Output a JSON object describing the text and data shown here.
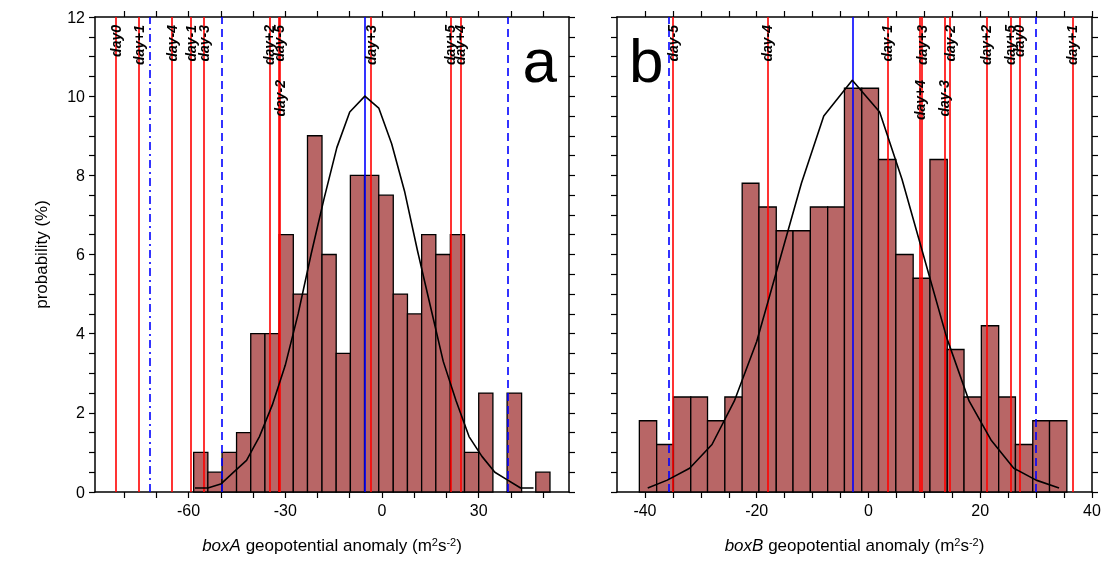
{
  "chart_data": [
    {
      "type": "histogram",
      "xlabel": "boxA geopotential anomaly (m$^{2}$s$^{-2}$)",
      "ylabel": "probability (%)",
      "annotations": [
        "a"
      ],
      "xlim": [
        -89,
        58
      ],
      "xticks": [
        {
          "value": -80,
          "label": null
        },
        {
          "value": -70,
          "label": null
        },
        -60,
        {
          "value": -50,
          "label": null
        },
        {
          "value": -40,
          "label": null
        },
        -30,
        {
          "value": -20,
          "label": null
        },
        {
          "value": -10,
          "label": null
        },
        0,
        {
          "value": 10,
          "label": null
        },
        {
          "value": 20,
          "label": null
        },
        30,
        {
          "value": 40,
          "label": null
        },
        {
          "value": 50,
          "label": null
        }
      ],
      "ylim": [
        0,
        12
      ],
      "yticks": [
        0,
        {
          "value": 0.5,
          "label": null
        },
        {
          "value": 1,
          "label": null
        },
        {
          "value": 1.5,
          "label": null
        },
        2,
        {
          "value": 2.5,
          "label": null
        },
        {
          "value": 3,
          "label": null
        },
        {
          "value": 3.5,
          "label": null
        },
        4,
        {
          "value": 4.5,
          "label": null
        },
        {
          "value": 5,
          "label": null
        },
        {
          "value": 5.5,
          "label": null
        },
        6,
        {
          "value": 6.5,
          "label": null
        },
        {
          "value": 7,
          "label": null
        },
        {
          "value": 7.5,
          "label": null
        },
        8,
        {
          "value": 8.5,
          "label": null
        },
        {
          "value": 9,
          "label": null
        },
        {
          "value": 9.5,
          "label": null
        },
        10,
        {
          "value": 10.5,
          "label": null
        },
        {
          "value": 11,
          "label": null
        },
        {
          "value": 11.5,
          "label": null
        },
        12
      ],
      "series": [
        {
          "type": "histogram",
          "color": "#b86666",
          "bins": [
            -58.4,
            -54,
            -49.6,
            -45.1,
            -40.7,
            -36.3,
            -31.9,
            -27.5,
            -23.1,
            -18.6,
            -14.2,
            -9.8,
            -5.4,
            -1,
            3.5,
            7.9,
            12.3,
            16.7,
            21.2,
            25.6,
            30,
            34.4,
            38.8,
            43.3,
            47.7,
            52.1
          ],
          "values": [
            1,
            0.5,
            1,
            1.5,
            4,
            4,
            6.5,
            5,
            9,
            6,
            3.5,
            8,
            8,
            7.5,
            5,
            4.5,
            6.5,
            6,
            6.5,
            1,
            2.5,
            0,
            2.5,
            0,
            0.5
          ]
        },
        {
          "type": "line",
          "color": "#000000",
          "x": [
            -58,
            -54,
            -50,
            -46,
            -42,
            -38,
            -34,
            -30,
            -26,
            -22,
            -18,
            -14,
            -10,
            -5.3,
            -1,
            3,
            7,
            11,
            15,
            19,
            23,
            27,
            31,
            35,
            39,
            43,
            47
          ],
          "values": [
            0.1,
            0.1,
            0.2,
            0.5,
            0.8,
            1.4,
            2.2,
            3.2,
            4.5,
            6,
            7.4,
            8.7,
            9.6,
            10,
            9.7,
            8.8,
            7.6,
            6.1,
            4.7,
            3.3,
            2.3,
            1.4,
            0.9,
            0.5,
            0.3,
            0.1,
            0.1
          ]
        }
      ],
      "ref_lines": [
        {
          "axis": "x",
          "value": -82.6,
          "label": "day0",
          "color": "#ff0000"
        },
        {
          "axis": "x",
          "value": -75.3,
          "label": "day+1",
          "color": "#ff0000"
        },
        {
          "axis": "x",
          "value": -72,
          "color": "#0000ff",
          "line_style": "dashdot"
        },
        {
          "axis": "x",
          "value": -65.1,
          "label": "day-4",
          "color": "#ff0000"
        },
        {
          "axis": "x",
          "value": -59.2,
          "label": "day-1",
          "color": "#ff0000"
        },
        {
          "axis": "x",
          "value": -55.3,
          "label": "day-3",
          "color": "#ff0000"
        },
        {
          "axis": "x",
          "value": -49.8,
          "color": "#0000ff",
          "line_style": "dashed"
        },
        {
          "axis": "x",
          "value": -34.9,
          "label": "day+2",
          "color": "#ff0000"
        },
        {
          "axis": "x",
          "value": -32,
          "label": "day-5",
          "color": "#ff0000"
        },
        {
          "axis": "x",
          "value": -31.7,
          "label": "day-2",
          "color": "#ff0000"
        },
        {
          "axis": "x",
          "value": -5.4,
          "color": "#0000ff"
        },
        {
          "axis": "x",
          "value": -3.5,
          "label": "day+3",
          "color": "#ff0000"
        },
        {
          "axis": "x",
          "value": 21.2,
          "label": "day+5",
          "color": "#ff0000"
        },
        {
          "axis": "x",
          "value": 24.3,
          "label": "day+4",
          "color": "#ff0000"
        },
        {
          "axis": "x",
          "value": 39,
          "color": "#0000ff",
          "line_style": "dashed"
        }
      ]
    },
    {
      "type": "histogram",
      "xlabel": "boxB geopotential anomaly (m$^{2}$s$^{-2}$)",
      "annotations": [
        "b"
      ],
      "tick_labels": "x",
      "xlim": [
        -45,
        40
      ],
      "xticks": [
        -40,
        {
          "value": -35,
          "label": null
        },
        {
          "value": -30,
          "label": null
        },
        {
          "value": -25,
          "label": null
        },
        -20,
        {
          "value": -15,
          "label": null
        },
        {
          "value": -10,
          "label": null
        },
        {
          "value": -5,
          "label": null
        },
        0,
        {
          "value": 5,
          "label": null
        },
        {
          "value": 10,
          "label": null
        },
        {
          "value": 15,
          "label": null
        },
        20,
        {
          "value": 25,
          "label": null
        },
        {
          "value": 30,
          "label": null
        },
        {
          "value": 35,
          "label": null
        },
        40
      ],
      "ylim": [
        0,
        12
      ],
      "yticks": [
        0,
        {
          "value": 0.5,
          "label": null
        },
        {
          "value": 1,
          "label": null
        },
        {
          "value": 1.5,
          "label": null
        },
        2,
        {
          "value": 2.5,
          "label": null
        },
        {
          "value": 3,
          "label": null
        },
        {
          "value": 3.5,
          "label": null
        },
        4,
        {
          "value": 4.5,
          "label": null
        },
        {
          "value": 5,
          "label": null
        },
        {
          "value": 5.5,
          "label": null
        },
        6,
        {
          "value": 6.5,
          "label": null
        },
        {
          "value": 7,
          "label": null
        },
        {
          "value": 7.5,
          "label": null
        },
        8,
        {
          "value": 8.5,
          "label": null
        },
        {
          "value": 9,
          "label": null
        },
        {
          "value": 9.5,
          "label": null
        },
        10,
        {
          "value": 10.5,
          "label": null
        },
        {
          "value": 11,
          "label": null
        },
        {
          "value": 11.5,
          "label": null
        },
        12
      ],
      "series": [
        {
          "type": "histogram",
          "color": "#b86666",
          "bins": [
            -41,
            -37.9,
            -34.9,
            -31.8,
            -28.8,
            -25.7,
            -22.6,
            -19.6,
            -16.5,
            -13.5,
            -10.4,
            -7.3,
            -4.3,
            -1.2,
            1.8,
            4.9,
            8,
            11,
            14.1,
            17.1,
            20.2,
            23.3,
            26.3,
            29.4,
            32.4,
            35.5
          ],
          "values": [
            1.8,
            1.2,
            2.4,
            2.4,
            1.8,
            2.4,
            7.8,
            7.2,
            6.6,
            6.6,
            7.2,
            7.2,
            10.2,
            10.2,
            8.4,
            6,
            5.4,
            8.4,
            3.6,
            2.4,
            4.2,
            2.4,
            1.2,
            1.8,
            1.8
          ]
        },
        {
          "type": "line",
          "color": "#000000",
          "x": [
            -39.5,
            -36,
            -32,
            -28,
            -24,
            -20,
            -16,
            -12,
            -8,
            -2.9,
            2,
            6,
            10,
            14,
            18,
            22,
            26,
            30,
            34.1
          ],
          "values": [
            0.1,
            0.3,
            0.6,
            1.2,
            2.3,
            3.8,
            5.8,
            7.8,
            9.5,
            10.4,
            9.6,
            7.9,
            5.9,
            3.9,
            2.3,
            1.3,
            0.6,
            0.3,
            0.1
          ]
        }
      ],
      "ref_lines": [
        {
          "axis": "x",
          "value": -35.7,
          "color": "#0000ff",
          "line_style": "dashed"
        },
        {
          "axis": "x",
          "value": -35,
          "label": "day-5",
          "color": "#ff0000"
        },
        {
          "axis": "x",
          "value": -18.1,
          "label": "day-4",
          "color": "#ff0000"
        },
        {
          "axis": "x",
          "value": -2.9,
          "color": "#0000ff"
        },
        {
          "axis": "x",
          "value": 3.4,
          "label": "day-1",
          "color": "#ff0000"
        },
        {
          "axis": "x",
          "value": 9.6,
          "label": "day+3",
          "color": "#ff0000"
        },
        {
          "axis": "x",
          "value": 9.2,
          "label": "day+4",
          "color": "#ff0000"
        },
        {
          "axis": "x",
          "value": 14.5,
          "label": "day-2",
          "color": "#ff0000"
        },
        {
          "axis": "x",
          "value": 13.6,
          "label": "day-3",
          "color": "#ff0000"
        },
        {
          "axis": "x",
          "value": 21.1,
          "label": "day+2",
          "color": "#ff0000"
        },
        {
          "axis": "x",
          "value": 25.4,
          "label": "day+5",
          "color": "#ff0000"
        },
        {
          "axis": "x",
          "value": 27,
          "label": "day0",
          "color": "#ff0000"
        },
        {
          "axis": "x",
          "value": 29.9,
          "color": "#0000ff",
          "line_style": "dashed"
        },
        {
          "axis": "x",
          "value": 36.5,
          "label": "day+1",
          "color": "#ff0000"
        }
      ]
    }
  ]
}
